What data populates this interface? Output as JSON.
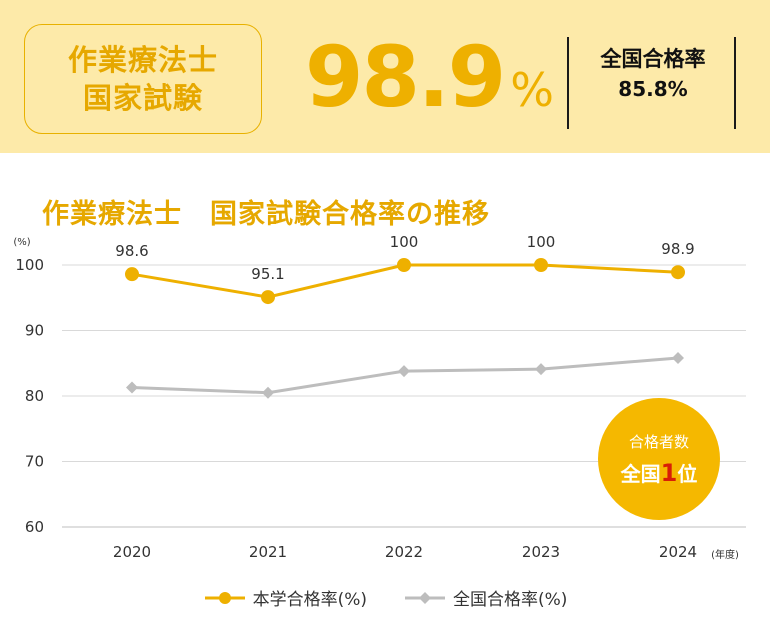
{
  "banner": {
    "exam_line1": "作業療法士",
    "exam_line2": "国家試験",
    "school_rate_value": "98.9",
    "school_rate_unit": "%",
    "national_label": "全国合格率",
    "national_value": "85.8%"
  },
  "badge": {
    "top": "合格者数",
    "pre": "全国",
    "highlight": "1",
    "post": "位"
  },
  "colors": {
    "school": "#eeb000",
    "national": "#bdbdbd",
    "banner_bg": "#fdeaa9",
    "badge_bg": "#f5b800"
  },
  "chart_data": {
    "type": "line",
    "title": "作業療法士　国家試験合格率の推移",
    "ylabel": "(%)",
    "xlabel": "(年度)",
    "x": [
      "2020",
      "2021",
      "2022",
      "2023",
      "2024"
    ],
    "ylim": [
      60,
      100
    ],
    "yticks": [
      60,
      70,
      80,
      90,
      100
    ],
    "grid": true,
    "legend_position": "bottom",
    "series": [
      {
        "name": "本学合格率(%)",
        "values": [
          98.6,
          95.1,
          100,
          100,
          98.9
        ],
        "data_labels": [
          "98.6",
          "95.1",
          "100",
          "100",
          "98.9"
        ],
        "marker": "circle"
      },
      {
        "name": "全国合格率(%)",
        "values": [
          81.3,
          80.5,
          83.8,
          84.1,
          85.8
        ],
        "marker": "diamond"
      }
    ]
  }
}
